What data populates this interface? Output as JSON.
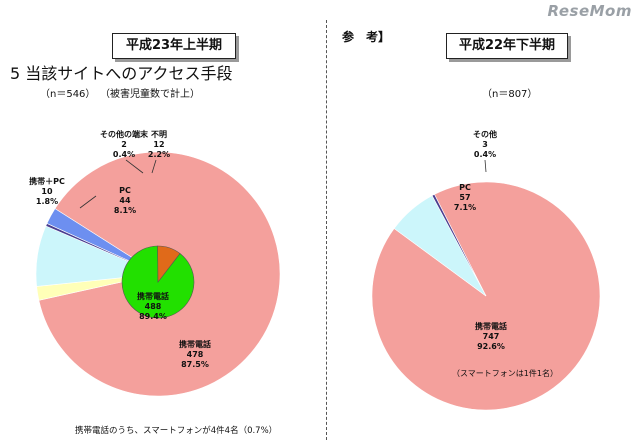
{
  "watermark": "ReseMom",
  "left": {
    "period_title": "平成23年上半期",
    "section_title": "5 当該サイトへのアクセス手段",
    "sample": "（n＝546）",
    "count_note": "（被害児童数で計上）",
    "footnote": "携帯電話のうち、スマートフォンが4件4名（0.7%）",
    "inner_label": {
      "name": "携帯電話",
      "value": "488",
      "pct": "89.4%"
    }
  },
  "right": {
    "reference_label": "参　考】",
    "period_title": "平成22年下半期",
    "sample": "（n＝807）",
    "smartphone_note": "（スマートフォンは1件1名）"
  },
  "chart_data": [
    {
      "type": "pie",
      "title": "平成23年上半期",
      "n": 546,
      "slices": [
        {
          "label": "携帯電話",
          "value": 478,
          "pct": "87.5%",
          "color": "#f4a09c"
        },
        {
          "label": "携帯＋PC",
          "value": 10,
          "pct": "1.8%",
          "color": "#ffffb8"
        },
        {
          "label": "PC",
          "value": 44,
          "pct": "8.1%",
          "color": "#ccf6fb"
        },
        {
          "label": "その他の端末",
          "value": 2,
          "pct": "0.4%",
          "color": "#4a3d8f"
        },
        {
          "label": "不明",
          "value": 12,
          "pct": "2.2%",
          "color": "#6d8ff0"
        }
      ],
      "inner_pie": {
        "slices": [
          {
            "label": "携帯電話",
            "value": 488,
            "pct": "89.4%",
            "color": "#22e000"
          },
          {
            "label": "",
            "value": 58,
            "pct": "",
            "color": "#e06a1a"
          }
        ]
      }
    },
    {
      "type": "pie",
      "title": "平成22年下半期",
      "n": 807,
      "slices": [
        {
          "label": "携帯電話",
          "value": 747,
          "pct": "92.6%",
          "color": "#f4a09c"
        },
        {
          "label": "PC",
          "value": 57,
          "pct": "7.1%",
          "color": "#ccf6fb"
        },
        {
          "label": "その他",
          "value": 3,
          "pct": "0.4%",
          "color": "#4a3d8f"
        }
      ]
    }
  ]
}
